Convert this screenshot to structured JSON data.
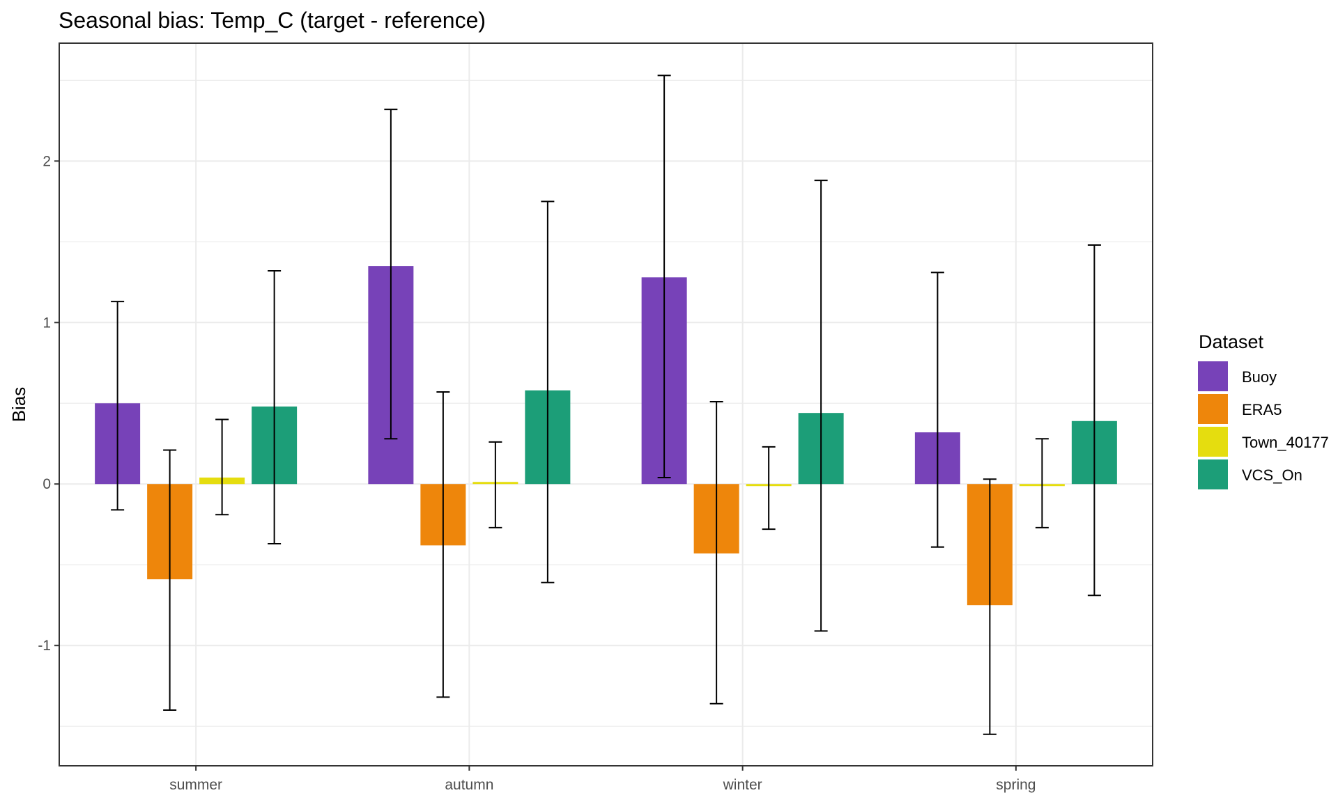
{
  "chart_data": {
    "type": "bar",
    "title": "Seasonal bias: Temp_C (target - reference)",
    "xlabel": "",
    "ylabel": "Bias",
    "ylim": [
      -1.745,
      2.73
    ],
    "yticks": [
      -1,
      0,
      1,
      2
    ],
    "yminor": [
      -1.5,
      -0.5,
      0.5,
      1.5,
      2.5
    ],
    "grid": true,
    "categories": [
      "summer",
      "autumn",
      "winter",
      "spring"
    ],
    "legend": {
      "title": "Dataset",
      "position": "right"
    },
    "series": [
      {
        "name": "Buoy",
        "color": "#7742B8",
        "values": [
          0.5,
          1.35,
          1.28,
          0.32
        ],
        "err_low": [
          -0.16,
          0.28,
          0.04,
          -0.39
        ],
        "err_high": [
          1.13,
          2.32,
          2.53,
          1.31
        ]
      },
      {
        "name": "ERA5",
        "color": "#EE860B",
        "values": [
          -0.59,
          -0.38,
          -0.43,
          -0.75
        ],
        "err_low": [
          -1.4,
          -1.32,
          -1.36,
          -1.55
        ],
        "err_high": [
          0.21,
          0.57,
          0.51,
          0.03
        ]
      },
      {
        "name": "Town_40177",
        "color": "#E5DD0F",
        "values": [
          0.04,
          0.0,
          -0.01,
          -0.005
        ],
        "err_low": [
          -0.19,
          -0.27,
          -0.28,
          -0.27
        ],
        "err_high": [
          0.4,
          0.26,
          0.23,
          0.28
        ]
      },
      {
        "name": "VCS_On",
        "color": "#1C9E78",
        "values": [
          0.48,
          0.58,
          0.44,
          0.39
        ],
        "err_low": [
          -0.37,
          -0.61,
          -0.91,
          -0.69
        ],
        "err_high": [
          1.32,
          1.75,
          1.88,
          1.48
        ]
      }
    ]
  }
}
